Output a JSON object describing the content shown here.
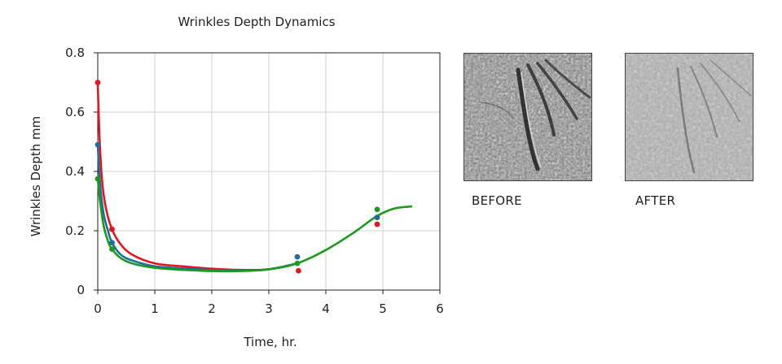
{
  "chart_data": {
    "type": "line",
    "title": "Wrinkles Depth Dynamics",
    "xlabel": "Time, hr.",
    "ylabel": "Wrinkles Depth mm",
    "xlim": [
      0,
      6
    ],
    "ylim": [
      0,
      0.8
    ],
    "xticks": [
      "0",
      "1",
      "2",
      "3",
      "4",
      "5",
      "6"
    ],
    "yticks": [
      "0",
      "0.2",
      "0.4",
      "0.6",
      "0.8"
    ],
    "grid": true,
    "series": [
      {
        "color": "#e8141c",
        "points": [
          [
            0,
            0.7
          ],
          [
            0.25,
            0.205
          ],
          [
            3.52,
            0.065
          ],
          [
            4.9,
            0.222
          ]
        ],
        "curve": [
          [
            0,
            0.7
          ],
          [
            0.03,
            0.52
          ],
          [
            0.08,
            0.36
          ],
          [
            0.15,
            0.27
          ],
          [
            0.25,
            0.205
          ],
          [
            0.4,
            0.155
          ],
          [
            0.6,
            0.12
          ],
          [
            1.0,
            0.09
          ],
          [
            1.5,
            0.08
          ],
          [
            2.0,
            0.072
          ],
          [
            2.5,
            0.068
          ],
          [
            3.0,
            0.07
          ],
          [
            3.5,
            0.09
          ]
        ]
      },
      {
        "color": "#1a6f9e",
        "points": [
          [
            0,
            0.49
          ],
          [
            0.25,
            0.16
          ],
          [
            3.5,
            0.112
          ],
          [
            4.9,
            0.245
          ]
        ],
        "curve": [
          [
            0,
            0.49
          ],
          [
            0.04,
            0.36
          ],
          [
            0.1,
            0.26
          ],
          [
            0.18,
            0.2
          ],
          [
            0.25,
            0.16
          ],
          [
            0.4,
            0.12
          ],
          [
            0.6,
            0.1
          ],
          [
            1.0,
            0.08
          ],
          [
            1.5,
            0.073
          ],
          [
            2.0,
            0.068
          ],
          [
            2.5,
            0.066
          ],
          [
            3.0,
            0.07
          ],
          [
            3.5,
            0.09
          ]
        ]
      },
      {
        "color": "#1c9a1c",
        "points": [
          [
            0,
            0.375
          ],
          [
            0.25,
            0.138
          ],
          [
            3.5,
            0.09
          ],
          [
            4.9,
            0.272
          ]
        ],
        "curve": [
          [
            0,
            0.375
          ],
          [
            0.04,
            0.3
          ],
          [
            0.1,
            0.22
          ],
          [
            0.18,
            0.165
          ],
          [
            0.25,
            0.138
          ],
          [
            0.4,
            0.108
          ],
          [
            0.6,
            0.09
          ],
          [
            1.0,
            0.075
          ],
          [
            1.5,
            0.068
          ],
          [
            2.0,
            0.064
          ],
          [
            2.5,
            0.064
          ],
          [
            3.0,
            0.07
          ],
          [
            3.5,
            0.09
          ],
          [
            4.0,
            0.135
          ],
          [
            4.5,
            0.195
          ],
          [
            4.9,
            0.25
          ],
          [
            5.2,
            0.275
          ],
          [
            5.5,
            0.282
          ]
        ]
      }
    ]
  },
  "images": {
    "before_caption": "BEFORE",
    "after_caption": "AFTER"
  }
}
